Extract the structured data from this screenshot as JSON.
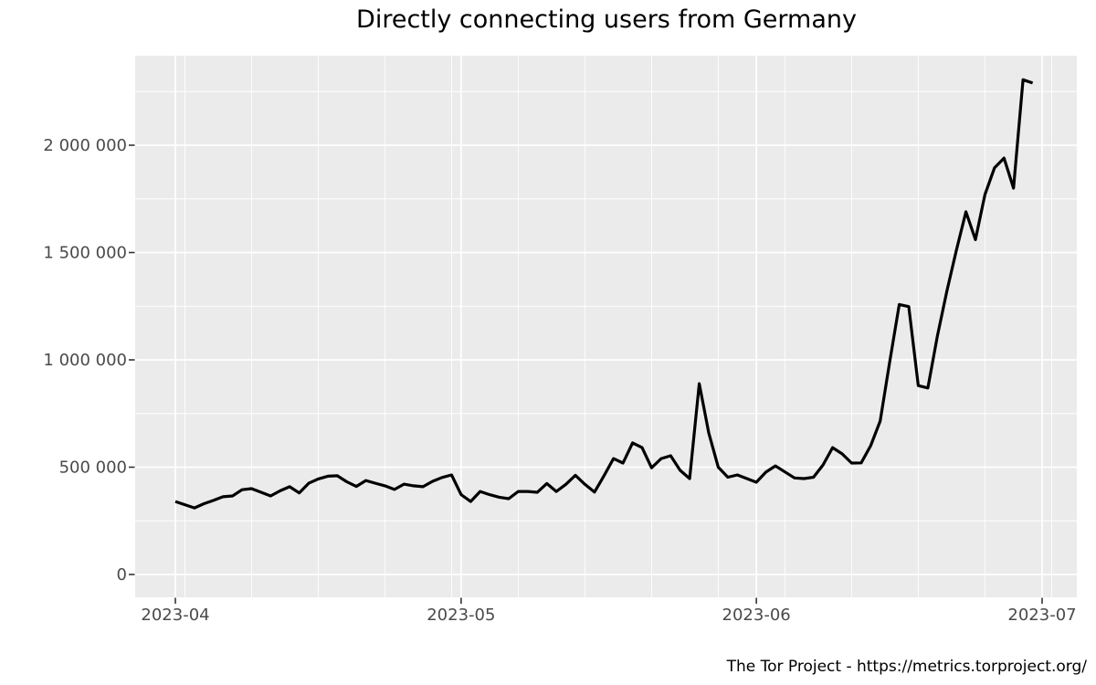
{
  "footer": {
    "text": "The Tor Project - https://metrics.torproject.org/"
  },
  "chart_data": {
    "type": "line",
    "title": "Directly connecting users from Germany",
    "xlabel": "",
    "ylabel": "",
    "legend": "none",
    "grid": "white major and minor gridlines on gray panel",
    "panel_color": "#ebebeb",
    "grid_color": "#ffffff",
    "line_color": "#000000",
    "axis_text_color": "#4a4a4a",
    "tick_mark_color": "#333333",
    "ylim": [
      0,
      2417000
    ],
    "x_range": [
      "2023-04-01",
      "2023-06-30"
    ],
    "x_ticks": [
      {
        "date": "2023-04-01",
        "label": "2023-04"
      },
      {
        "date": "2023-05-01",
        "label": "2023-05"
      },
      {
        "date": "2023-06-01",
        "label": "2023-06"
      },
      {
        "date": "2023-07-01",
        "label": "2023-07"
      }
    ],
    "x_minor_gridlines": [
      "2023-04-02",
      "2023-04-09",
      "2023-04-16",
      "2023-04-23",
      "2023-04-30",
      "2023-05-07",
      "2023-05-14",
      "2023-05-21",
      "2023-05-28",
      "2023-06-04",
      "2023-06-11",
      "2023-06-18",
      "2023-06-25",
      "2023-07-02"
    ],
    "y_ticks": [
      {
        "value": 0,
        "label": "0"
      },
      {
        "value": 500000,
        "label": "500 000"
      },
      {
        "value": 1000000,
        "label": "1 000 000"
      },
      {
        "value": 1500000,
        "label": "1 500 000"
      },
      {
        "value": 2000000,
        "label": "2 000 000"
      }
    ],
    "y_minor_gridlines": [
      250000,
      750000,
      1250000,
      1750000,
      2250000
    ],
    "series_name": "directly-connecting-users",
    "dates": [
      "2023-04-01",
      "2023-04-02",
      "2023-04-03",
      "2023-04-04",
      "2023-04-05",
      "2023-04-06",
      "2023-04-07",
      "2023-04-08",
      "2023-04-09",
      "2023-04-10",
      "2023-04-11",
      "2023-04-12",
      "2023-04-13",
      "2023-04-14",
      "2023-04-15",
      "2023-04-16",
      "2023-04-17",
      "2023-04-18",
      "2023-04-19",
      "2023-04-20",
      "2023-04-21",
      "2023-04-22",
      "2023-04-23",
      "2023-04-24",
      "2023-04-25",
      "2023-04-26",
      "2023-04-27",
      "2023-04-28",
      "2023-04-29",
      "2023-04-30",
      "2023-05-01",
      "2023-05-02",
      "2023-05-03",
      "2023-05-04",
      "2023-05-05",
      "2023-05-06",
      "2023-05-07",
      "2023-05-08",
      "2023-05-09",
      "2023-05-10",
      "2023-05-11",
      "2023-05-12",
      "2023-05-13",
      "2023-05-14",
      "2023-05-15",
      "2023-05-16",
      "2023-05-17",
      "2023-05-18",
      "2023-05-19",
      "2023-05-20",
      "2023-05-21",
      "2023-05-22",
      "2023-05-23",
      "2023-05-24",
      "2023-05-25",
      "2023-05-26",
      "2023-05-27",
      "2023-05-28",
      "2023-05-29",
      "2023-05-30",
      "2023-05-31",
      "2023-06-01",
      "2023-06-02",
      "2023-06-03",
      "2023-06-04",
      "2023-06-05",
      "2023-06-06",
      "2023-06-07",
      "2023-06-08",
      "2023-06-09",
      "2023-06-10",
      "2023-06-11",
      "2023-06-12",
      "2023-06-13",
      "2023-06-14",
      "2023-06-15",
      "2023-06-16",
      "2023-06-17",
      "2023-06-18",
      "2023-06-19",
      "2023-06-20",
      "2023-06-21",
      "2023-06-22",
      "2023-06-23",
      "2023-06-24",
      "2023-06-25",
      "2023-06-26",
      "2023-06-27",
      "2023-06-28",
      "2023-06-29",
      "2023-06-30"
    ],
    "values": [
      340000,
      325000,
      310000,
      330000,
      345000,
      362000,
      366000,
      395000,
      400000,
      383000,
      366000,
      390000,
      409000,
      380000,
      425000,
      445000,
      458000,
      460000,
      432000,
      410000,
      438000,
      425000,
      413000,
      396000,
      421000,
      413000,
      409000,
      434000,
      452000,
      464000,
      372000,
      340000,
      387000,
      372000,
      360000,
      353000,
      387000,
      387000,
      383000,
      424000,
      387000,
      420000,
      462000,
      420000,
      384000,
      460000,
      540000,
      519000,
      613000,
      591000,
      497000,
      540000,
      553000,
      485000,
      447000,
      889000,
      660000,
      500000,
      453000,
      464000,
      447000,
      430000,
      477000,
      506000,
      478000,
      450000,
      447000,
      453000,
      510000,
      591000,
      562000,
      519000,
      520000,
      600000,
      715000,
      990000,
      1258000,
      1248000,
      880000,
      869000,
      1110000,
      1320000,
      1510000,
      1690000,
      1560000,
      1770000,
      1895000,
      1940000,
      1800000,
      2305000,
      2290000
    ]
  }
}
